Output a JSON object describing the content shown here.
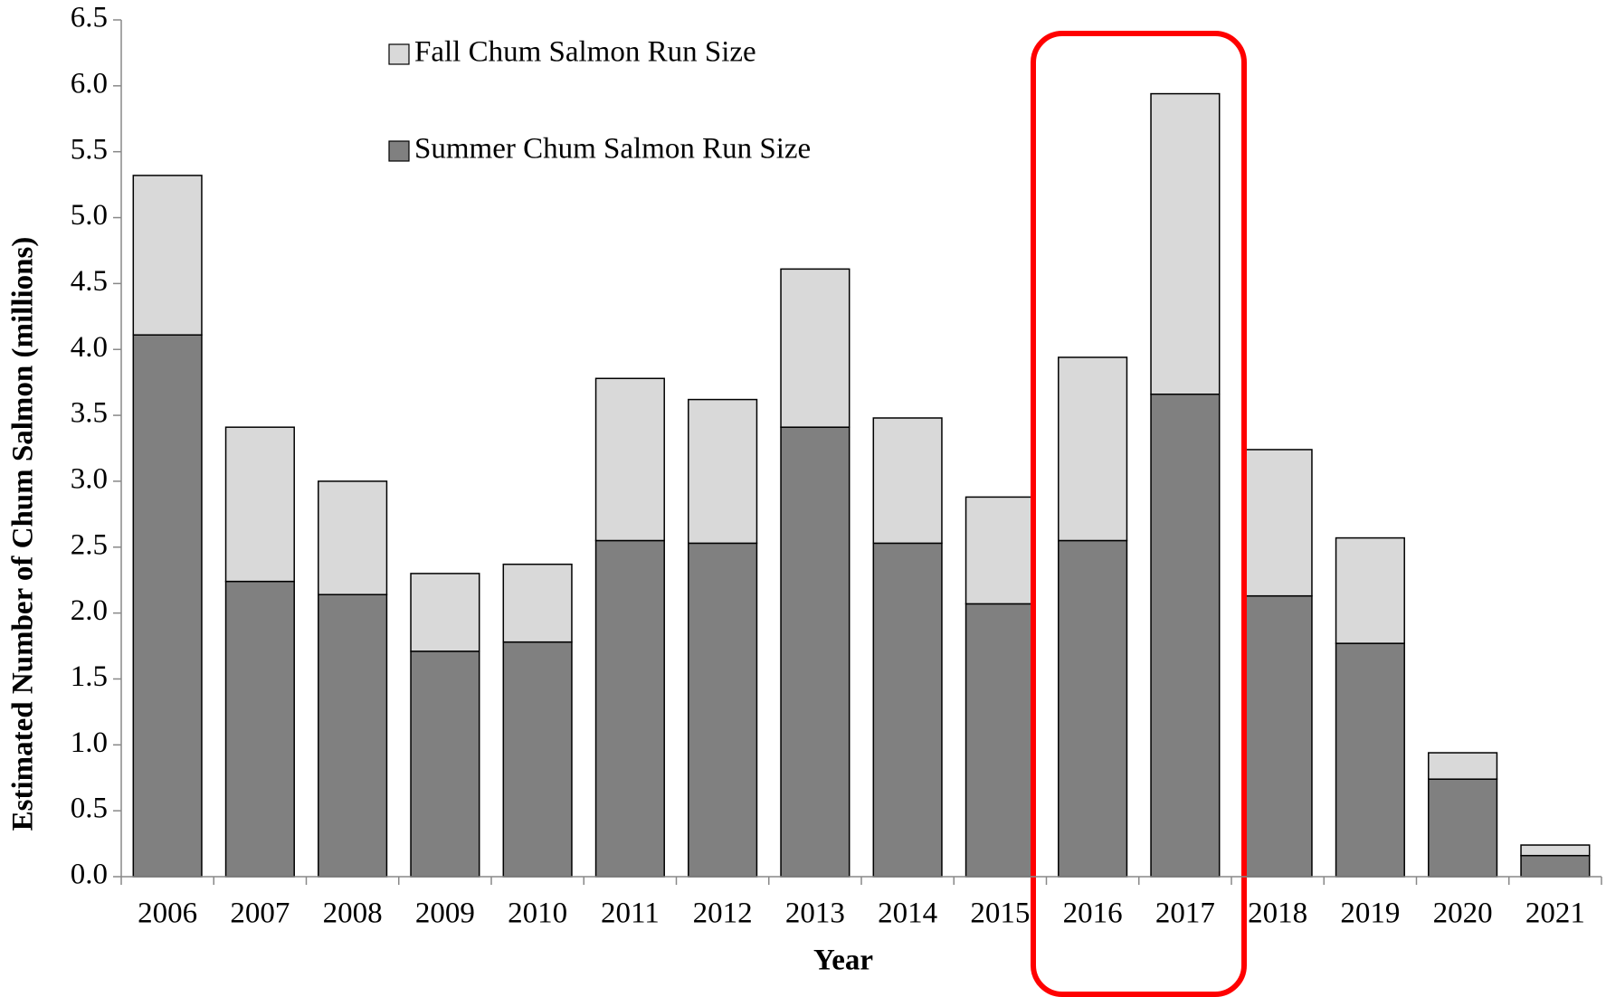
{
  "chart_data": {
    "type": "stacked_bar",
    "xlabel": "Year",
    "ylabel": "Estimated Number of Chum Salmon (millions)",
    "categories": [
      "2006",
      "2007",
      "2008",
      "2009",
      "2010",
      "2011",
      "2012",
      "2013",
      "2014",
      "2015",
      "2016",
      "2017",
      "2018",
      "2019",
      "2020",
      "2021"
    ],
    "series": [
      {
        "name": "Summer Chum Salmon Run Size",
        "color": "#808080",
        "values": [
          4.11,
          2.24,
          2.14,
          1.71,
          1.78,
          2.55,
          2.53,
          3.41,
          2.53,
          2.07,
          2.55,
          3.66,
          2.13,
          1.77,
          0.74,
          0.16
        ]
      },
      {
        "name": "Fall Chum Salmon Run Size",
        "color": "#d9d9d9",
        "values": [
          1.21,
          1.17,
          0.86,
          0.59,
          0.59,
          1.23,
          1.09,
          1.2,
          0.95,
          0.81,
          1.39,
          2.28,
          1.11,
          0.8,
          0.2,
          0.08
        ]
      }
    ],
    "ylim": [
      0,
      6.5
    ],
    "yticks": [
      {
        "value": 0,
        "label": "0.0"
      },
      0.5,
      {
        "value": 1,
        "label": "1.0"
      },
      1.5,
      {
        "value": 2,
        "label": "2.0"
      },
      2.5,
      {
        "value": 3,
        "label": "3.0"
      },
      3.5,
      {
        "value": 4,
        "label": "4.0"
      },
      4.5,
      {
        "value": 5,
        "label": "5.0"
      },
      5.5,
      {
        "value": 6,
        "label": "6.0"
      },
      6.5
    ]
  }
}
